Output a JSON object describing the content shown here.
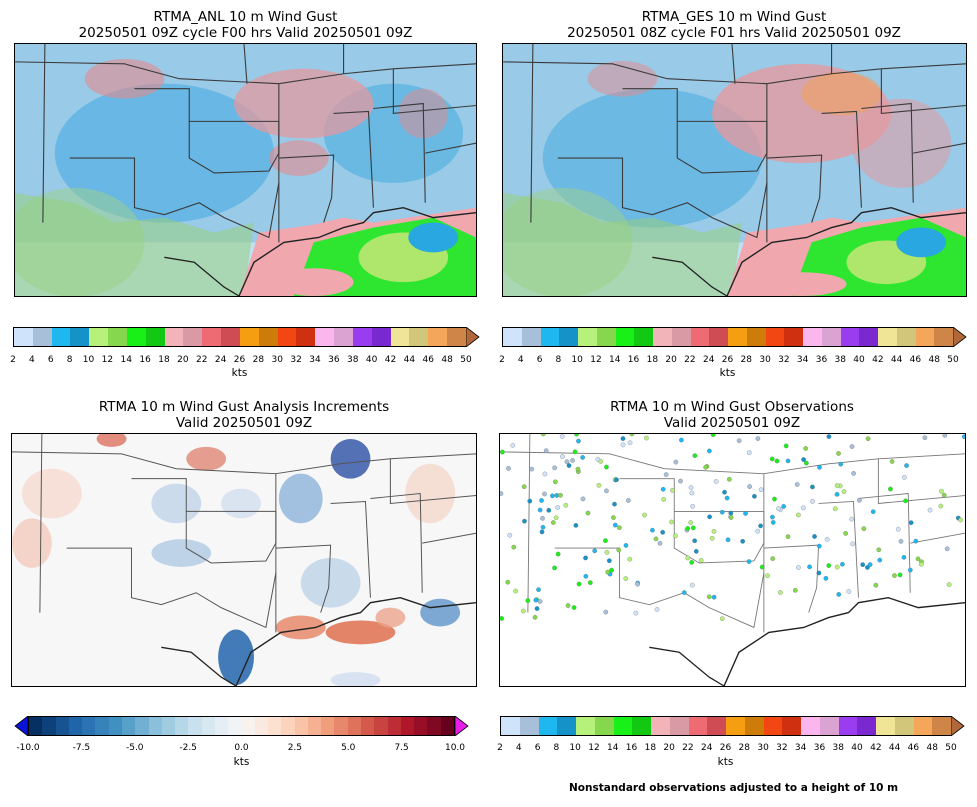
{
  "panels": {
    "anl": {
      "title_line1": "RTMA_ANL 10 m Wind Gust",
      "title_line2": "20250501 09Z cycle F00 hrs Valid 20250501 09Z"
    },
    "ges": {
      "title_line1": "RTMA_GES 10 m Wind Gust",
      "title_line2": "20250501 08Z cycle F01 hrs Valid 20250501 09Z"
    },
    "inc": {
      "title_line1": "RTMA 10 m Wind Gust Analysis Increments",
      "title_line2": "Valid 20250501 09Z"
    },
    "obs": {
      "title_line1": "RTMA 10 m Wind Gust Observations",
      "title_line2": "Valid 20250501 09Z"
    }
  },
  "colorbar_gust": {
    "ticks": [
      "2",
      "4",
      "6",
      "8",
      "10",
      "12",
      "14",
      "16",
      "18",
      "20",
      "22",
      "24",
      "26",
      "28",
      "30",
      "32",
      "34",
      "36",
      "38",
      "40",
      "42",
      "44",
      "46",
      "48",
      "50"
    ],
    "colors": [
      "#cfe4fb",
      "#a8bfd9",
      "#1eb7f0",
      "#1593c8",
      "#b6f27b",
      "#86d64e",
      "#19f018",
      "#13c813",
      "#f2b4b8",
      "#d99aa5",
      "#ef6b73",
      "#d04c55",
      "#f59e12",
      "#cd7c0a",
      "#f24713",
      "#cf3010",
      "#fbb6ee",
      "#dba3d2",
      "#9a3cf0",
      "#7a28d0",
      "#f0e596",
      "#d2c67a",
      "#f4a75a",
      "#cf8548"
    ],
    "extend_color": "#b0673a",
    "units": "kts"
  },
  "colorbar_inc": {
    "ticks": [
      "-10.0",
      "-7.5",
      "-5.0",
      "-2.5",
      "0.0",
      "2.5",
      "5.0",
      "7.5",
      "10.0"
    ],
    "under_color": "#0a14d8",
    "over_color": "#e81ee8",
    "units": "kts"
  },
  "footnote": "Nonstandard observations adjusted to a height of 10 m"
}
